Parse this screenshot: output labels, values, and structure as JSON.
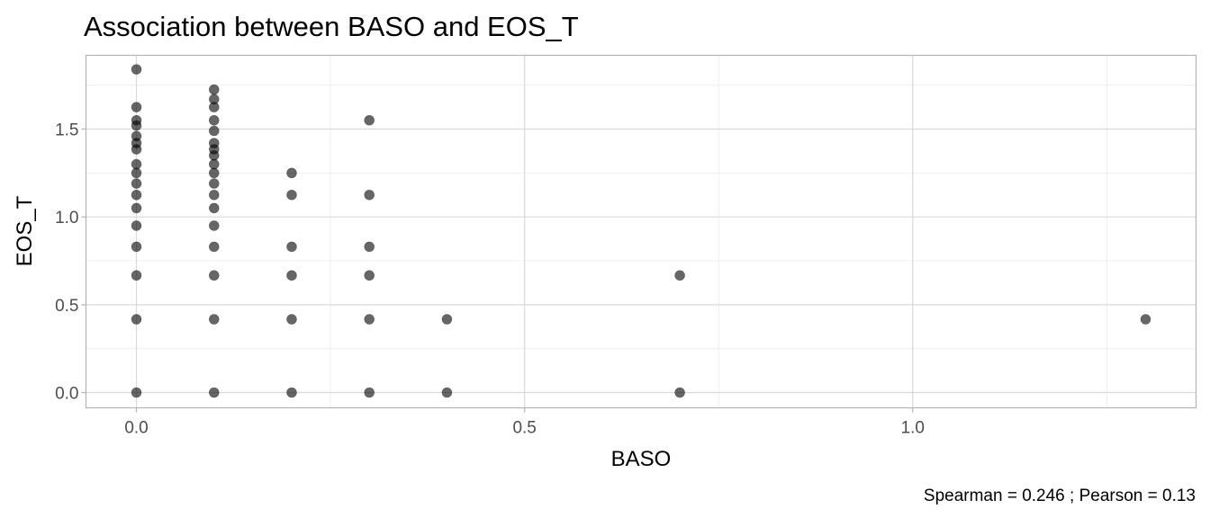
{
  "chart_data": {
    "type": "scatter",
    "title": "Association between BASO and EOS_T",
    "xlabel": "BASO",
    "ylabel": "EOS_T",
    "caption": "Spearman = 0.246 ; Pearson = 0.13",
    "xlim": [
      -0.065,
      1.365
    ],
    "ylim": [
      -0.087,
      1.92
    ],
    "x_ticks": [
      0.0,
      0.5,
      1.0
    ],
    "x_tick_labels": [
      "0.0",
      "0.5",
      "1.0"
    ],
    "y_ticks": [
      0.0,
      0.5,
      1.0,
      1.5
    ],
    "y_tick_labels": [
      "0.0",
      "0.5",
      "1.0",
      "1.5"
    ],
    "grid": true,
    "point_color": "#000000",
    "point_opacity": 0.6,
    "points": [
      {
        "x": 0.0,
        "y": 1.84
      },
      {
        "x": 0.0,
        "y": 1.625
      },
      {
        "x": 0.0,
        "y": 1.55
      },
      {
        "x": 0.0,
        "y": 1.52
      },
      {
        "x": 0.0,
        "y": 1.46
      },
      {
        "x": 0.0,
        "y": 1.42
      },
      {
        "x": 0.0,
        "y": 1.385
      },
      {
        "x": 0.0,
        "y": 1.3
      },
      {
        "x": 0.0,
        "y": 1.25
      },
      {
        "x": 0.0,
        "y": 1.19
      },
      {
        "x": 0.0,
        "y": 1.125
      },
      {
        "x": 0.0,
        "y": 1.05
      },
      {
        "x": 0.0,
        "y": 0.95
      },
      {
        "x": 0.0,
        "y": 0.83
      },
      {
        "x": 0.0,
        "y": 0.667
      },
      {
        "x": 0.0,
        "y": 0.417
      },
      {
        "x": 0.0,
        "y": 0.0
      },
      {
        "x": 0.1,
        "y": 1.725
      },
      {
        "x": 0.1,
        "y": 1.67
      },
      {
        "x": 0.1,
        "y": 1.625
      },
      {
        "x": 0.1,
        "y": 1.55
      },
      {
        "x": 0.1,
        "y": 1.49
      },
      {
        "x": 0.1,
        "y": 1.42
      },
      {
        "x": 0.1,
        "y": 1.385
      },
      {
        "x": 0.1,
        "y": 1.35
      },
      {
        "x": 0.1,
        "y": 1.3
      },
      {
        "x": 0.1,
        "y": 1.25
      },
      {
        "x": 0.1,
        "y": 1.19
      },
      {
        "x": 0.1,
        "y": 1.125
      },
      {
        "x": 0.1,
        "y": 1.05
      },
      {
        "x": 0.1,
        "y": 0.95
      },
      {
        "x": 0.1,
        "y": 0.83
      },
      {
        "x": 0.1,
        "y": 0.667
      },
      {
        "x": 0.1,
        "y": 0.417
      },
      {
        "x": 0.1,
        "y": 0.0
      },
      {
        "x": 0.2,
        "y": 1.25
      },
      {
        "x": 0.2,
        "y": 1.125
      },
      {
        "x": 0.2,
        "y": 0.83
      },
      {
        "x": 0.2,
        "y": 0.667
      },
      {
        "x": 0.2,
        "y": 0.417
      },
      {
        "x": 0.2,
        "y": 0.0
      },
      {
        "x": 0.3,
        "y": 1.55
      },
      {
        "x": 0.3,
        "y": 1.125
      },
      {
        "x": 0.3,
        "y": 0.83
      },
      {
        "x": 0.3,
        "y": 0.667
      },
      {
        "x": 0.3,
        "y": 0.417
      },
      {
        "x": 0.3,
        "y": 0.0
      },
      {
        "x": 0.4,
        "y": 0.417
      },
      {
        "x": 0.4,
        "y": 0.0
      },
      {
        "x": 0.7,
        "y": 0.667
      },
      {
        "x": 0.7,
        "y": 0.0
      },
      {
        "x": 1.3,
        "y": 0.417
      }
    ]
  }
}
